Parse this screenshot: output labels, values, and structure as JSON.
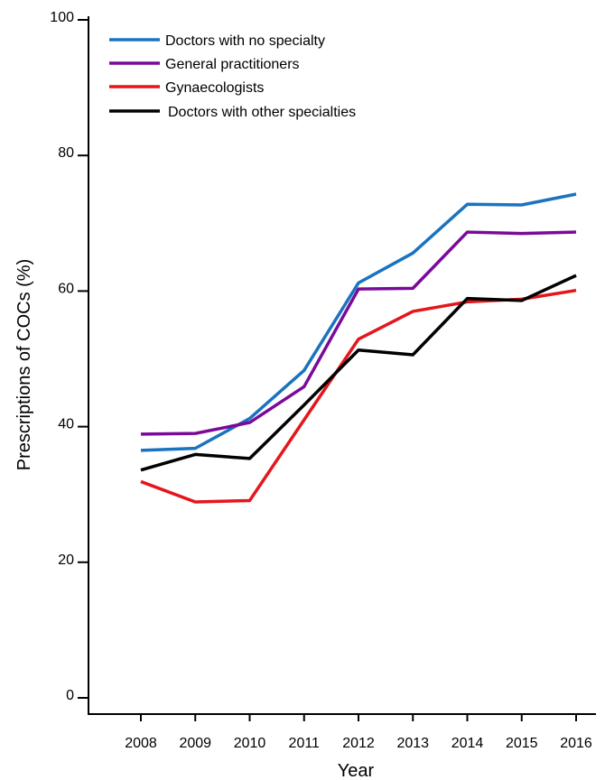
{
  "chart_data": {
    "type": "line",
    "title": "",
    "xlabel": "Year",
    "ylabel": "Prescriptions of COCs (%)",
    "x": [
      "2008",
      "2009",
      "2010",
      "2011",
      "2012",
      "2013",
      "2014",
      "2015",
      "2016"
    ],
    "ylim": [
      0,
      100
    ],
    "yticks": [
      "0",
      "20",
      "40",
      "60",
      "80",
      "100"
    ],
    "grid": false,
    "legend_position": "top-left",
    "series": [
      {
        "name": "Doctors with no specialty",
        "color": "#1a73c0",
        "values": [
          36.5,
          36.8,
          41.2,
          48.3,
          61.2,
          65.6,
          72.8,
          72.7,
          74.3
        ]
      },
      {
        "name": "General practitioners",
        "color": "#7a0a99",
        "values": [
          38.9,
          39.0,
          40.6,
          45.9,
          60.3,
          60.4,
          68.7,
          68.5,
          68.7
        ]
      },
      {
        "name": "Gynaecologists",
        "color": "#e4161b",
        "values": [
          31.9,
          28.9,
          29.1,
          41.0,
          52.9,
          57.0,
          58.4,
          58.8,
          60.1
        ]
      },
      {
        "name": "Doctors with other specialties",
        "color": "#000000",
        "values": [
          33.6,
          35.9,
          35.3,
          43.2,
          51.3,
          50.6,
          58.9,
          58.6,
          62.3
        ]
      }
    ]
  }
}
